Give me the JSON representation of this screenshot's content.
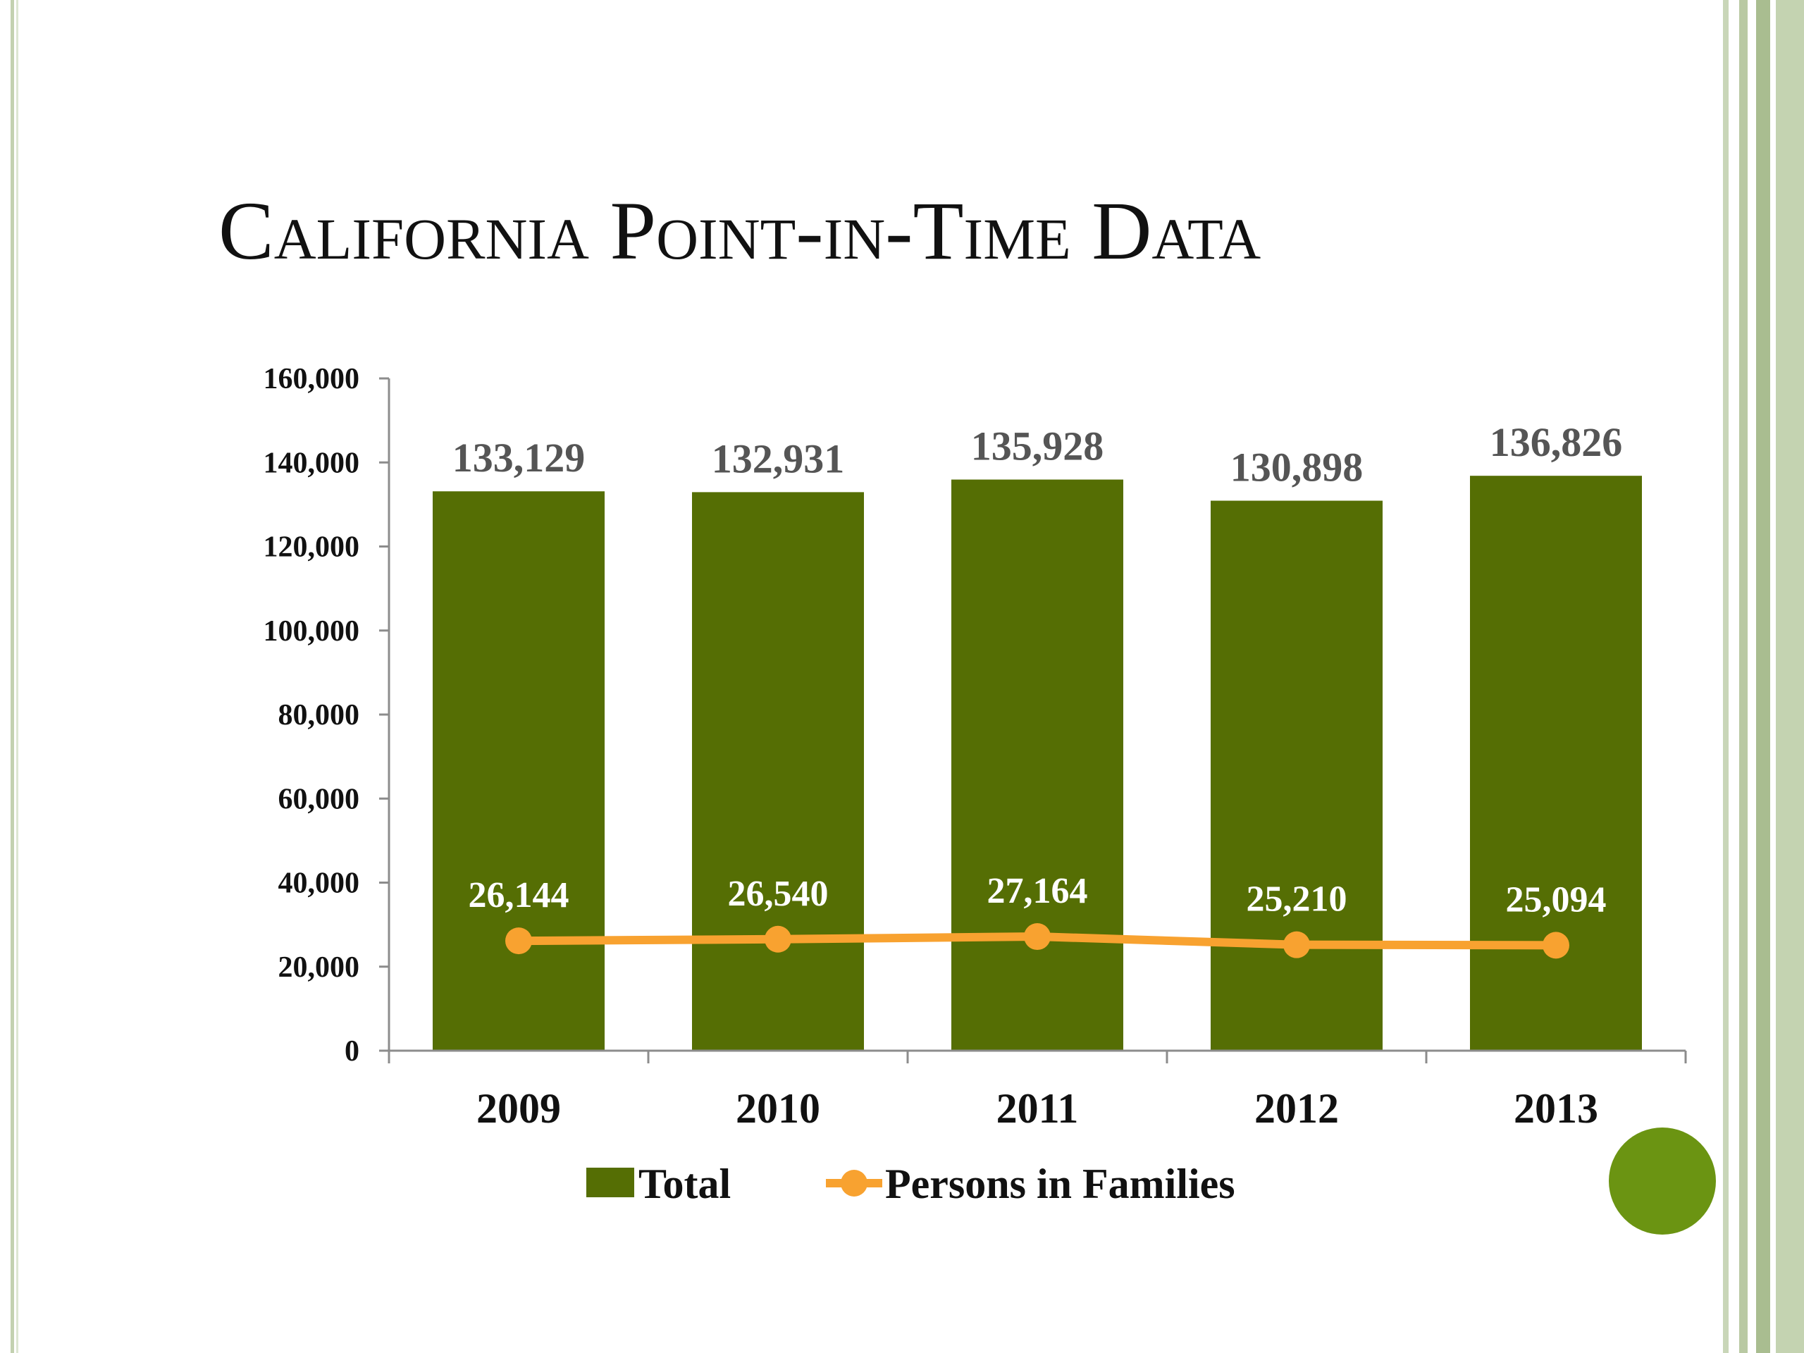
{
  "slide": {
    "title": "California Point-in-Time Data",
    "colors": {
      "frame": "#b9c9a3",
      "accent_dot": "#6b9412"
    }
  },
  "chart_data": {
    "type": "bar",
    "title": "",
    "xlabel": "",
    "ylabel": "",
    "categories": [
      "2009",
      "2010",
      "2011",
      "2012",
      "2013"
    ],
    "ylim": [
      0,
      160000
    ],
    "yticks": [
      0,
      20000,
      40000,
      60000,
      80000,
      100000,
      120000,
      140000,
      160000
    ],
    "ytick_labels": [
      "0",
      "20,000",
      "40,000",
      "60,000",
      "80,000",
      "100,000",
      "120,000",
      "140,000",
      "160,000"
    ],
    "grid": false,
    "legend_position": "bottom",
    "series": [
      {
        "name": "Total",
        "type": "bar",
        "color": "#556e04",
        "values": [
          133129,
          132931,
          135928,
          130898,
          136826
        ],
        "labels": [
          "133,129",
          "132,931",
          "135,928",
          "130,898",
          "136,826"
        ]
      },
      {
        "name": "Persons in Families",
        "type": "line",
        "color": "#f8a230",
        "values": [
          26144,
          26540,
          27164,
          25210,
          25094
        ],
        "labels": [
          "26,144",
          "26,540",
          "27,164",
          "25,210",
          "25,094"
        ]
      }
    ]
  }
}
